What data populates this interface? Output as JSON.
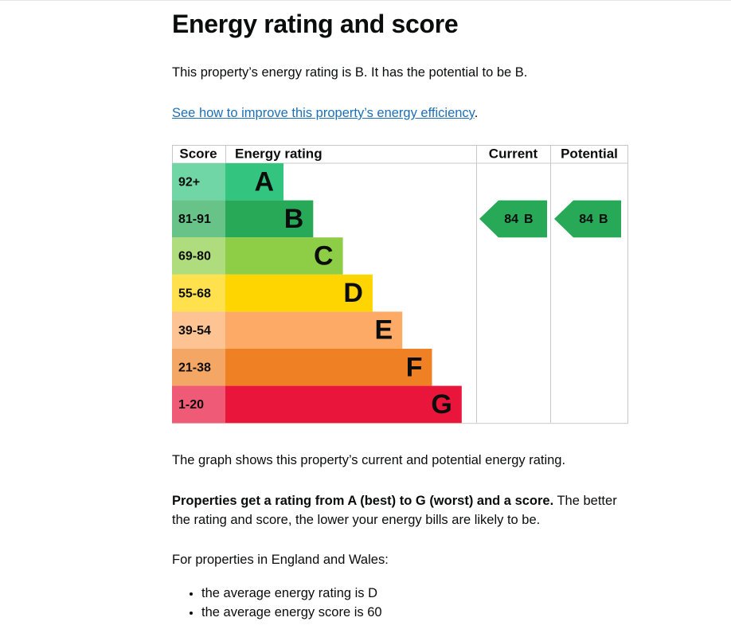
{
  "heading": "Energy rating and score",
  "intro": "This property’s energy rating is B. It has the potential to be B.",
  "link": "See how to improve this property’s energy efficiency",
  "link_suffix": ".",
  "table": {
    "headers": [
      "Score",
      "Energy rating",
      "Current",
      "Potential"
    ],
    "bands": [
      {
        "score": "92+",
        "letter": "A",
        "color": "#33c57f"
      },
      {
        "score": "81-91",
        "letter": "B",
        "color": "#28a957"
      },
      {
        "score": "69-80",
        "letter": "C",
        "color": "#8dce46"
      },
      {
        "score": "55-68",
        "letter": "D",
        "color": "#ffd500"
      },
      {
        "score": "39-54",
        "letter": "E",
        "color": "#fcaa65"
      },
      {
        "score": "21-38",
        "letter": "F",
        "color": "#ef8023"
      },
      {
        "score": "1-20",
        "letter": "G",
        "color": "#e9153b"
      }
    ],
    "current": {
      "score": 84,
      "letter": "B"
    },
    "potential": {
      "score": 84,
      "letter": "B"
    }
  },
  "graph_note": "The graph shows this property’s current and potential energy rating.",
  "rating_bold": "Properties get a rating from A (best) to G (worst) and a score.",
  "rating_rest": " The better the rating and score, the lower your energy bills are likely to be.",
  "england_intro": "For properties in England and Wales:",
  "averages": [
    "the average energy rating is D",
    "the average energy score is 60"
  ]
}
